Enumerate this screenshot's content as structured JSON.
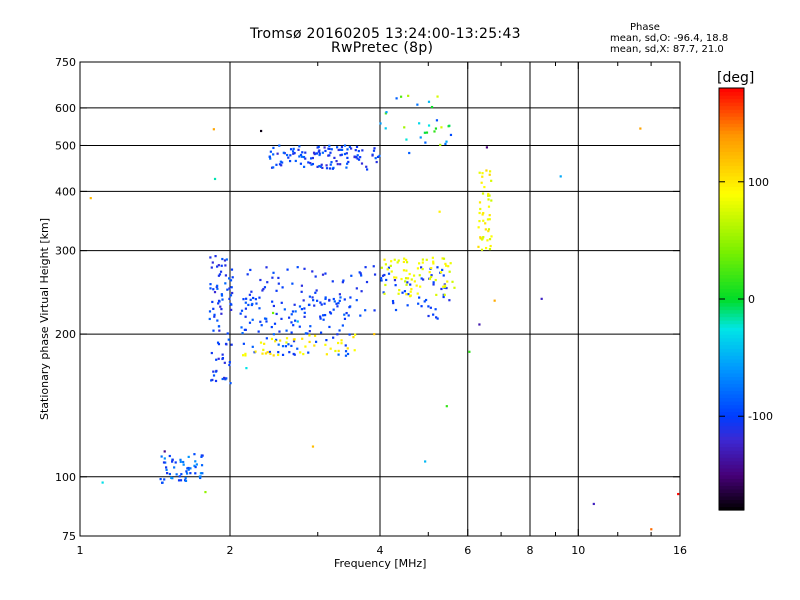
{
  "chart_data": {
    "type": "scatter",
    "title": "Tromsø 20160205 13:24:00-13:25:43",
    "subtitle": "RwPretec (8p)",
    "xlabel": "Frequency [MHz]",
    "ylabel": "Stationary phase Virtual Height [km]",
    "x_scale": "log",
    "y_scale": "log",
    "xlim": [
      1,
      16
    ],
    "ylim": [
      75,
      750
    ],
    "x_ticks": [
      1,
      2,
      4,
      6,
      8,
      10,
      16
    ],
    "x_tick_labels": [
      "1",
      "2",
      "4",
      "6",
      "8",
      "10",
      "16"
    ],
    "x_minor_ticks": [
      3,
      5,
      7,
      9,
      12,
      14
    ],
    "y_ticks": [
      75,
      100,
      200,
      300,
      400,
      500,
      600,
      750
    ],
    "y_tick_labels": [
      "75",
      "100",
      "200",
      "300",
      "400",
      "500",
      "600",
      "750"
    ],
    "grid_x": [
      2,
      4,
      6,
      8,
      10
    ],
    "grid_y": [
      100,
      200,
      300,
      400,
      500,
      600
    ],
    "colorbar": {
      "unit": "[deg]",
      "range": [
        -180,
        180
      ],
      "ticks": [
        100,
        0,
        -100
      ],
      "tick_labels": [
        "100",
        "0",
        "-100"
      ]
    },
    "stats": {
      "heading": "Phase",
      "o_line": "mean, sd,O: -96.4, 18.8",
      "x_line": "mean, sd,X:  87.7, 21.0"
    },
    "clusters": [
      {
        "desc": "E/F1 low traces",
        "x": [
          1.45,
          1.78
        ],
        "y": [
          97,
          112
        ],
        "phase": [
          -110,
          -60
        ],
        "n": 55
      },
      {
        "desc": "near-vertical cusp",
        "x": [
          1.82,
          2.02
        ],
        "y": [
          155,
          300
        ],
        "phase": [
          -120,
          -80
        ],
        "n": 80
      },
      {
        "desc": "F2 ordinary trace",
        "x": [
          2.0,
          5.6
        ],
        "y": [
          215,
          280
        ],
        "phase": [
          -115,
          -90
        ],
        "n": 140
      },
      {
        "desc": "F1 ordinary band",
        "x": [
          2.1,
          3.5
        ],
        "y": [
          180,
          240
        ],
        "phase": [
          -110,
          -80
        ],
        "n": 90
      },
      {
        "desc": "F extraordinary trace",
        "x": [
          4.0,
          5.7
        ],
        "y": [
          240,
          290
        ],
        "phase": [
          70,
          100
        ],
        "n": 70
      },
      {
        "desc": "F2 X cusp",
        "x": [
          6.3,
          6.7
        ],
        "y": [
          300,
          450
        ],
        "phase": [
          70,
          110
        ],
        "n": 45
      },
      {
        "desc": "upper echoes",
        "x": [
          2.4,
          4.0
        ],
        "y": [
          445,
          500
        ],
        "phase": [
          -120,
          -80
        ],
        "n": 120
      },
      {
        "desc": "upper echoes high freq",
        "x": [
          4.0,
          5.6
        ],
        "y": [
          480,
          640
        ],
        "phase": [
          -100,
          80
        ],
        "n": 30
      },
      {
        "desc": "yellow band",
        "x": [
          2.1,
          3.6
        ],
        "y": [
          180,
          200
        ],
        "phase": [
          80,
          110
        ],
        "n": 40
      },
      {
        "desc": "scatter",
        "x": [
          1.0,
          16.0
        ],
        "y": [
          75,
          750
        ],
        "phase": [
          -180,
          180
        ],
        "n": 25
      }
    ]
  }
}
